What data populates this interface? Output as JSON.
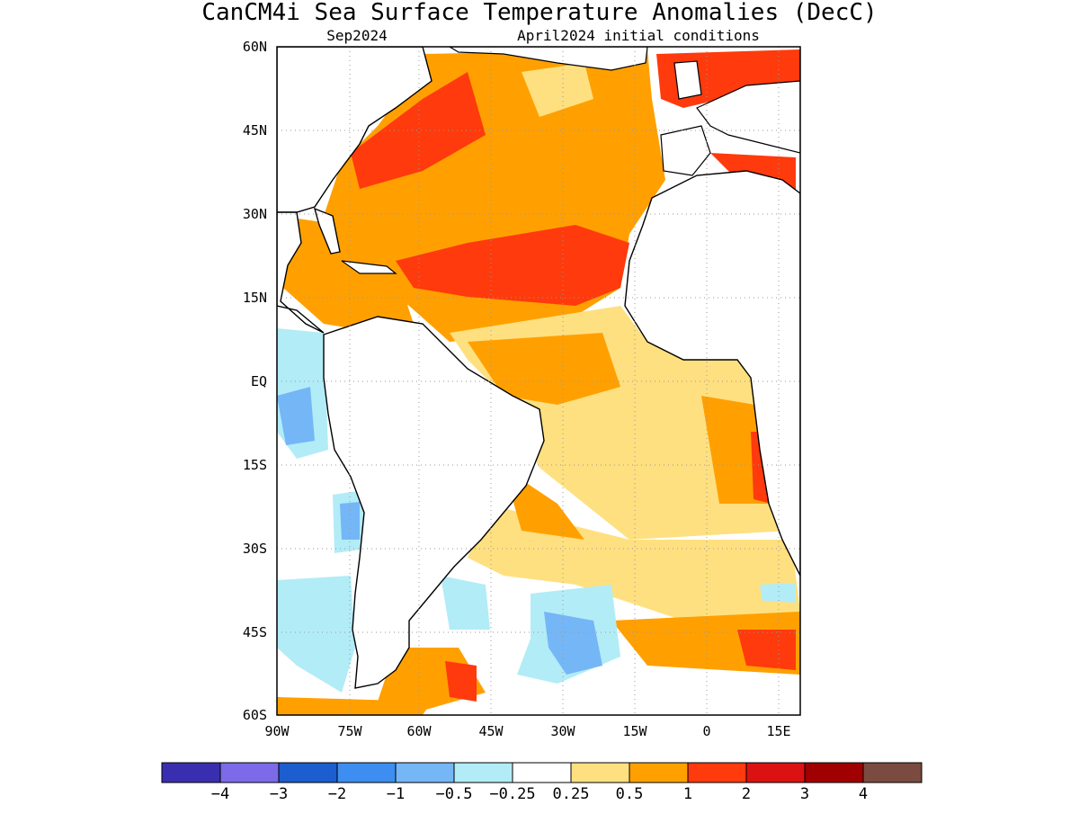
{
  "title": "CanCM4i Sea Surface Temperature Anomalies (DecC)",
  "subtitle_left": "Sep2024",
  "subtitle_right": "April2024 initial conditions",
  "map": {
    "lat_labels": [
      "60N",
      "45N",
      "30N",
      "15N",
      "EQ",
      "15S",
      "30S",
      "45S",
      "60S"
    ],
    "lon_labels": [
      "90W",
      "75W",
      "60W",
      "45W",
      "30W",
      "15W",
      "0",
      "15E"
    ],
    "lat_range": [
      -60,
      60
    ],
    "lon_range": [
      -90,
      18
    ],
    "grid": "dotted"
  },
  "colorbar": {
    "colors": [
      "#3a2eb0",
      "#7b6be8",
      "#1c5ecf",
      "#3d8ef0",
      "#75b6f7",
      "#b2ecf7",
      "#ffffff",
      "#ffe080",
      "#ffa000",
      "#ff3a0c",
      "#dc1212",
      "#a00000",
      "#7b4a40"
    ],
    "labels": [
      "−4",
      "−3",
      "−2",
      "−1",
      "−0.5",
      "−0.25",
      "0.25",
      "0.5",
      "1",
      "2",
      "3",
      "4"
    ]
  }
}
